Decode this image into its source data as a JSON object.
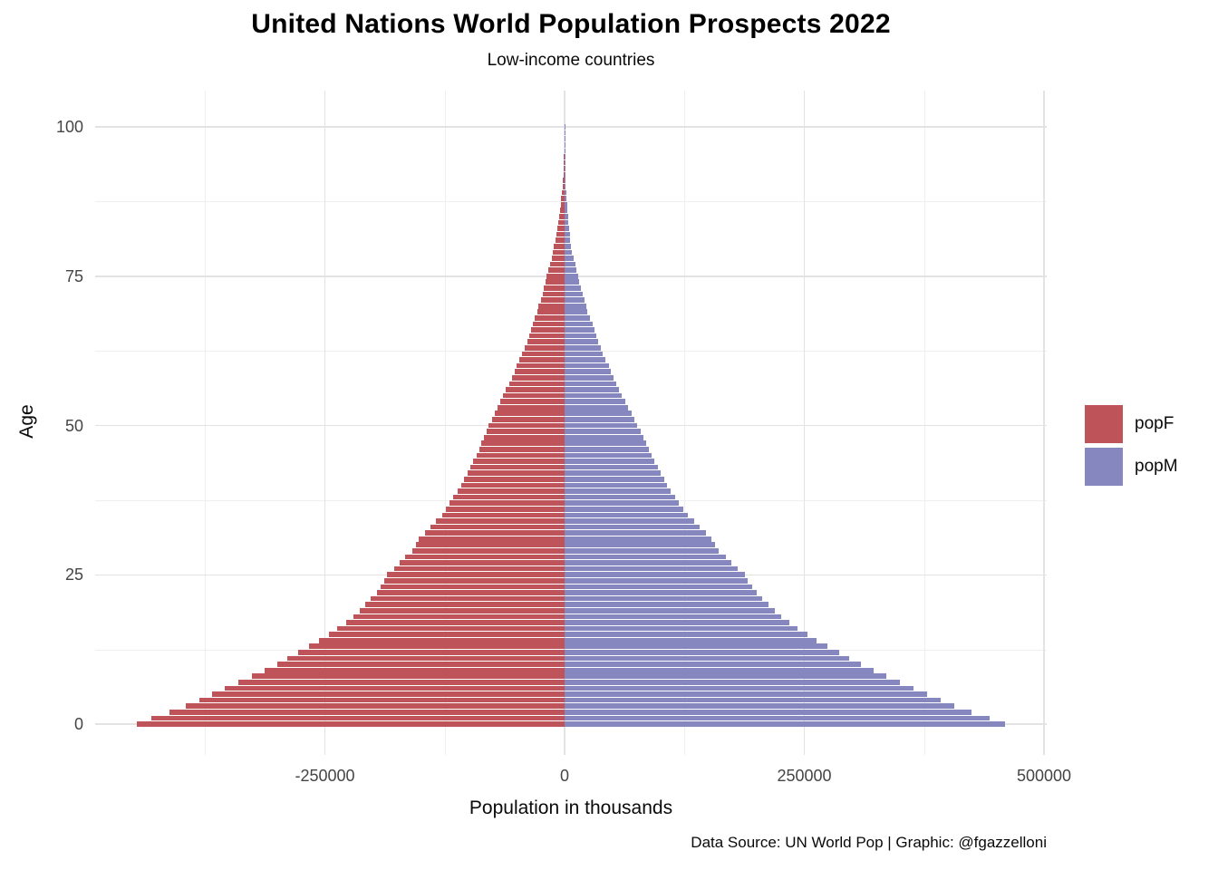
{
  "page": {
    "title": "United Nations World Population Prospects 2022",
    "subtitle": "Low-income countries",
    "caption": "Data Source: UN World Pop | Graphic: @fgazzelloni"
  },
  "axes": {
    "x_label": "Population in thousands",
    "y_label": "Age",
    "x_tick_labels": [
      "-250000",
      "0",
      "250000",
      "500000"
    ],
    "y_tick_labels": [
      "0",
      "25",
      "50",
      "75",
      "100"
    ]
  },
  "legend": {
    "position": "right",
    "items": [
      {
        "label": "popF",
        "color": "#be5459"
      },
      {
        "label": "popM",
        "color": "#8787bf"
      }
    ]
  },
  "chart_data": {
    "type": "bar",
    "subtype": "population-pyramid",
    "orientation": "horizontal",
    "title": "United Nations World Population Prospects 2022",
    "subtitle": "Low-income countries",
    "caption": "Data Source: UN World Pop | Graphic: @fgazzelloni",
    "xlabel": "Population in thousands",
    "ylabel": "Age",
    "units": "thousands",
    "grid": "on",
    "legend_position": "right",
    "x_ticks": [
      -250000,
      0,
      250000,
      500000
    ],
    "x_minor_ticks": [
      -375000,
      -125000,
      125000,
      375000
    ],
    "xlim": [
      -490000,
      505000
    ],
    "y_ticks": [
      0,
      25,
      50,
      75,
      100
    ],
    "y_minor_ticks": [
      12.5,
      37.5,
      62.5,
      87.5
    ],
    "ylim": [
      -5,
      106
    ],
    "ages": [
      0,
      1,
      2,
      3,
      4,
      5,
      6,
      7,
      8,
      9,
      10,
      11,
      12,
      13,
      14,
      15,
      16,
      17,
      18,
      19,
      20,
      21,
      22,
      23,
      24,
      25,
      26,
      27,
      28,
      29,
      30,
      31,
      32,
      33,
      34,
      35,
      36,
      37,
      38,
      39,
      40,
      41,
      42,
      43,
      44,
      45,
      46,
      47,
      48,
      49,
      50,
      51,
      52,
      53,
      54,
      55,
      56,
      57,
      58,
      59,
      60,
      61,
      62,
      63,
      64,
      65,
      66,
      67,
      68,
      69,
      70,
      71,
      72,
      73,
      74,
      75,
      76,
      77,
      78,
      79,
      80,
      81,
      82,
      83,
      84,
      85,
      86,
      87,
      88,
      89,
      90,
      91,
      92,
      93,
      94,
      95,
      96,
      97,
      98,
      99,
      100
    ],
    "series": [
      {
        "name": "popF",
        "side": "left",
        "color": "#be5459",
        "values": [
          446000,
          431000,
          412000,
          395000,
          381000,
          368000,
          354000,
          340000,
          326000,
          313000,
          300000,
          289000,
          278000,
          267000,
          256000,
          246000,
          237000,
          228000,
          220000,
          214000,
          208000,
          202000,
          196000,
          192000,
          188000,
          185000,
          178000,
          172000,
          166000,
          159000,
          155000,
          152000,
          146000,
          140000,
          134000,
          128000,
          124000,
          120000,
          116000,
          112000,
          108000,
          105000,
          101000,
          98000,
          95000,
          92000,
          89000,
          87000,
          84000,
          81000,
          79000,
          76000,
          73000,
          70000,
          67000,
          64000,
          61000,
          58000,
          55000,
          52000,
          50000,
          47000,
          44000,
          42000,
          39000,
          37000,
          35000,
          33000,
          31000,
          28000,
          27000,
          25000,
          23000,
          22000,
          20000,
          19000,
          17000,
          15500,
          13500,
          12000,
          11000,
          9500,
          8500,
          7500,
          6500,
          5800,
          5000,
          4200,
          3500,
          2900,
          2300,
          1800,
          1300,
          1000,
          700,
          500,
          320,
          200,
          120,
          60,
          30
        ]
      },
      {
        "name": "popM",
        "side": "right",
        "color": "#8787bf",
        "values": [
          459000,
          443000,
          424000,
          406000,
          392000,
          378000,
          364000,
          350000,
          336000,
          322000,
          309000,
          297000,
          286000,
          274000,
          263000,
          253000,
          243000,
          234000,
          226000,
          219000,
          213000,
          206000,
          200000,
          196000,
          191000,
          188000,
          181000,
          174000,
          168000,
          161000,
          157000,
          153000,
          147000,
          141000,
          135000,
          129000,
          124000,
          119000,
          115000,
          111000,
          107000,
          104000,
          100000,
          97000,
          94000,
          91000,
          88000,
          85000,
          82000,
          79000,
          76000,
          73000,
          70000,
          66000,
          63000,
          60000,
          57000,
          54000,
          51000,
          48000,
          46000,
          43000,
          40000,
          38000,
          35000,
          33000,
          31000,
          29000,
          26000,
          24000,
          23000,
          21000,
          19000,
          17000,
          15500,
          14000,
          12500,
          11000,
          9500,
          8000,
          7000,
          6000,
          5200,
          4600,
          4000,
          3400,
          2900,
          2500,
          2100,
          1700,
          1400,
          1200,
          1000,
          900,
          800,
          700,
          600,
          500,
          300,
          150,
          80
        ]
      }
    ]
  }
}
